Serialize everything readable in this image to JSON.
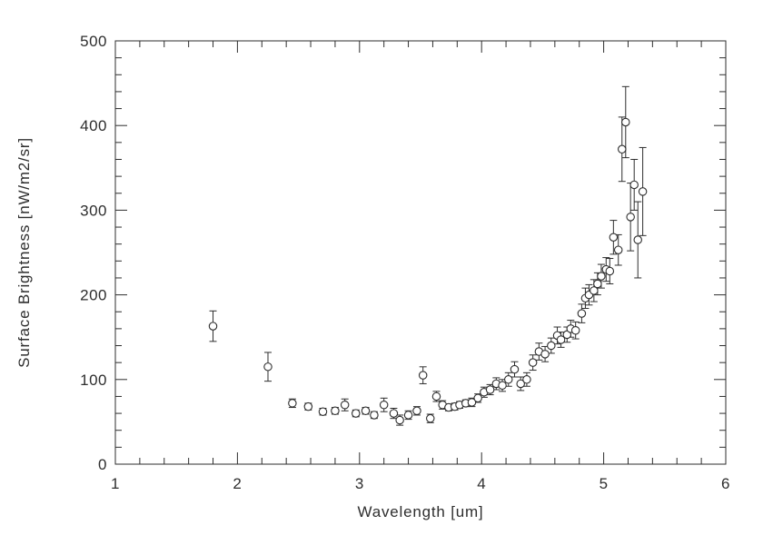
{
  "chart_data": {
    "type": "scatter",
    "title": "",
    "xlabel": "Wavelength [um]",
    "ylabel": "Surface Brightness [nW/m2/sr]",
    "xlim": [
      1,
      6
    ],
    "ylim": [
      0,
      500
    ],
    "x_ticks": [
      1,
      2,
      3,
      4,
      5,
      6
    ],
    "y_ticks": [
      0,
      100,
      200,
      300,
      400,
      500
    ],
    "x_minor_per_interval": 5,
    "y_minor_per_interval": 5,
    "grid": false,
    "legend": "none",
    "error_bars": true,
    "marker": "open-circle",
    "color": "#2e2e2e",
    "background": "#ffffff",
    "x": [
      1.8,
      2.25,
      2.45,
      2.58,
      2.7,
      2.8,
      2.88,
      2.97,
      3.05,
      3.12,
      3.2,
      3.28,
      3.33,
      3.4,
      3.47,
      3.52,
      3.58,
      3.63,
      3.68,
      3.73,
      3.78,
      3.82,
      3.87,
      3.92,
      3.97,
      4.02,
      4.07,
      4.12,
      4.17,
      4.22,
      4.27,
      4.32,
      4.37,
      4.42,
      4.47,
      4.52,
      4.57,
      4.62,
      4.65,
      4.7,
      4.73,
      4.77,
      4.82,
      4.85,
      4.88,
      4.92,
      4.95,
      4.98,
      5.02,
      5.05,
      5.08,
      5.12,
      5.15,
      5.18,
      5.22,
      5.25,
      5.28,
      5.32
    ],
    "y": [
      163,
      115,
      72,
      68,
      62,
      63,
      70,
      60,
      63,
      58,
      70,
      60,
      52,
      58,
      63,
      105,
      54,
      80,
      70,
      67,
      68,
      70,
      72,
      73,
      78,
      85,
      88,
      95,
      93,
      100,
      112,
      95,
      100,
      120,
      133,
      130,
      140,
      152,
      147,
      153,
      160,
      158,
      178,
      196,
      200,
      205,
      213,
      222,
      230,
      228,
      268,
      253,
      372,
      404,
      292,
      330,
      265,
      322
    ],
    "yerr": [
      18,
      17,
      5,
      4,
      4,
      4,
      7,
      4,
      4,
      4,
      8,
      6,
      6,
      5,
      5,
      10,
      5,
      6,
      5,
      4,
      4,
      4,
      4,
      5,
      5,
      6,
      6,
      7,
      7,
      8,
      9,
      8,
      8,
      9,
      10,
      9,
      9,
      10,
      9,
      9,
      10,
      10,
      11,
      12,
      12,
      13,
      13,
      14,
      14,
      15,
      20,
      18,
      38,
      42,
      40,
      30,
      45,
      52
    ]
  }
}
